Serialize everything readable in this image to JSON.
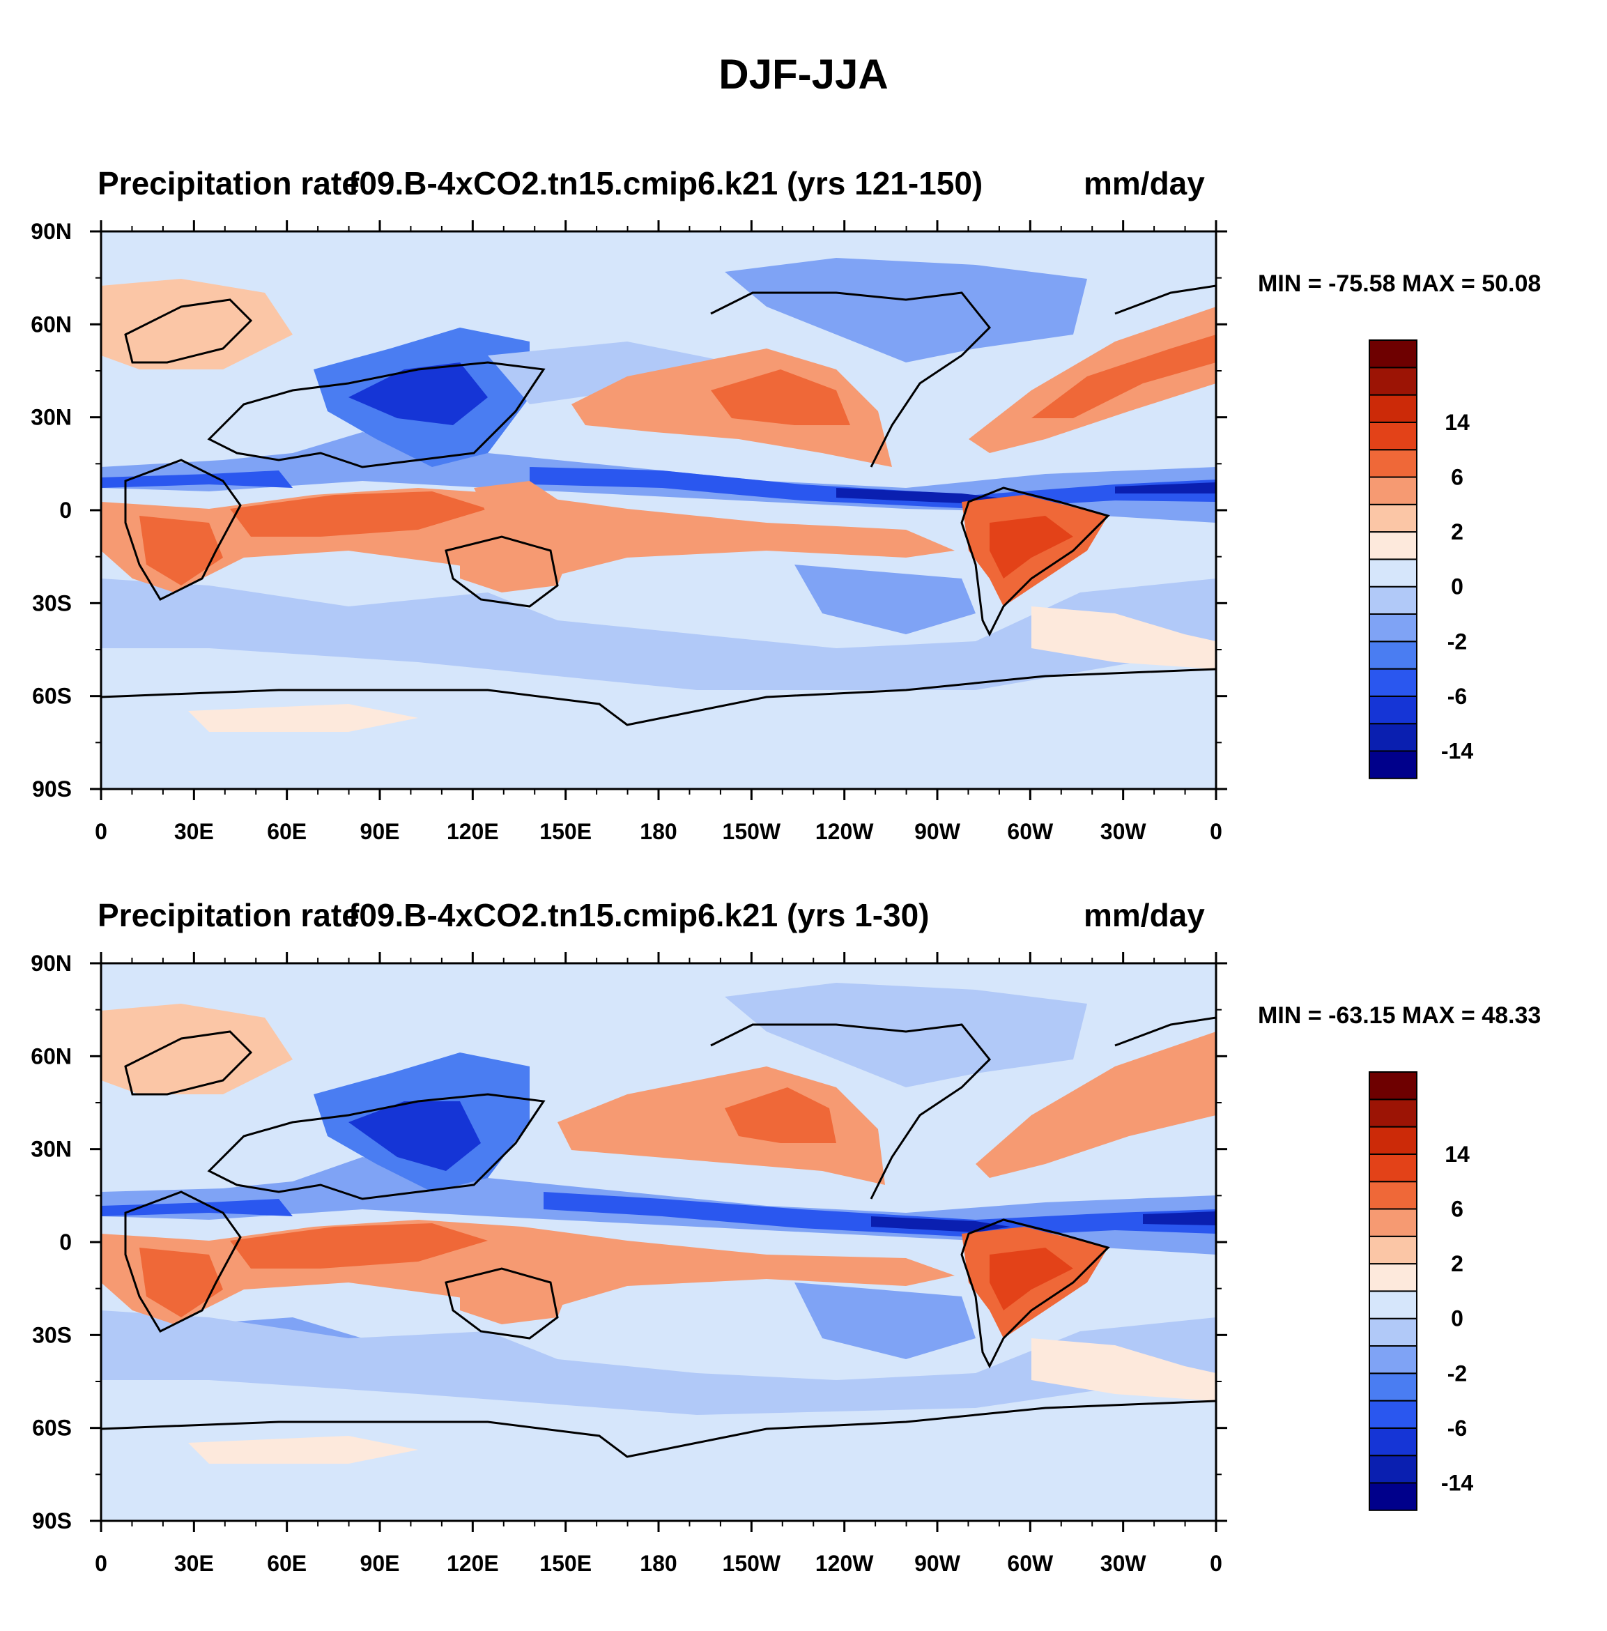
{
  "title": "DJF-JJA",
  "palette": [
    "#00008b",
    "#0a1fb0",
    "#1535d6",
    "#2a57ef",
    "#4a7df2",
    "#7fa3f5",
    "#b1c9f8",
    "#d6e6fb",
    "#fde9dc",
    "#fbc6a6",
    "#f69a72",
    "#ef6838",
    "#e34218",
    "#cc2a08",
    "#9c1405",
    "#6e0000"
  ],
  "colorbar": {
    "labels": [
      {
        "text": "14",
        "index": 12
      },
      {
        "text": "6",
        "index": 10
      },
      {
        "text": "2",
        "index": 8
      },
      {
        "text": "0",
        "index": 6
      },
      {
        "text": "-2",
        "index": 4
      },
      {
        "text": "-6",
        "index": 2
      },
      {
        "text": "-14",
        "index": 0
      }
    ]
  },
  "axes": {
    "lat_labels": [
      "90N",
      "60N",
      "30N",
      "0",
      "30S",
      "60S",
      "90S"
    ],
    "lon_labels": [
      "0",
      "30E",
      "60E",
      "90E",
      "120E",
      "150E",
      "180",
      "150W",
      "120W",
      "90W",
      "60W",
      "30W",
      "0"
    ]
  },
  "panels": [
    {
      "left_title": "Precipitation rate",
      "center_title": "f09.B-4xCO2.tn15.cmip6.k21 (yrs 121-150)",
      "units": "mm/day",
      "minmax": "MIN = -75.58 MAX =  50.08"
    },
    {
      "left_title": "Precipitation rate",
      "center_title": "f09.B-4xCO2.tn15.cmip6.k21 (yrs 1-30)",
      "units": "mm/day",
      "minmax": "MIN = -63.15 MAX =  48.33"
    }
  ]
}
